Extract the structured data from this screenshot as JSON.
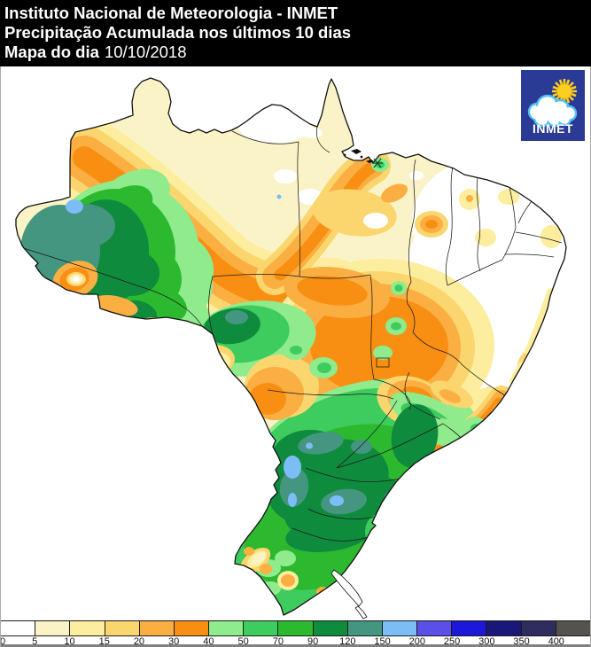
{
  "header": {
    "line1": "Instituto Nacional de Meteorologia - INMET",
    "line2": "Precipitação Acumulada nos últimos 10 dias",
    "line3_label": "Mapa do dia",
    "line3_value": "10/10/2018",
    "bg": "#000000",
    "fg": "#FFFFFF"
  },
  "logo": {
    "text": "INMET",
    "bg": "#2B3A94",
    "cloud_outline": "#52C1F1",
    "sun_color": "#FBCF20"
  },
  "legend": {
    "ticks": [
      0,
      5,
      10,
      15,
      20,
      30,
      40,
      50,
      70,
      90,
      120,
      150,
      200,
      250,
      300,
      350,
      400
    ],
    "colors": [
      "#FFFFFF",
      "#FBF3C8",
      "#FCEE9E",
      "#FBD56E",
      "#FBAF42",
      "#F98F12",
      "#8FEB8C",
      "#3ECC5E",
      "#2CB92F",
      "#0F8B3D",
      "#449680",
      "#7CBDF5",
      "#5A50E8",
      "#1D17D9",
      "#191878",
      "#2F2C5F",
      "#54534E"
    ]
  }
}
